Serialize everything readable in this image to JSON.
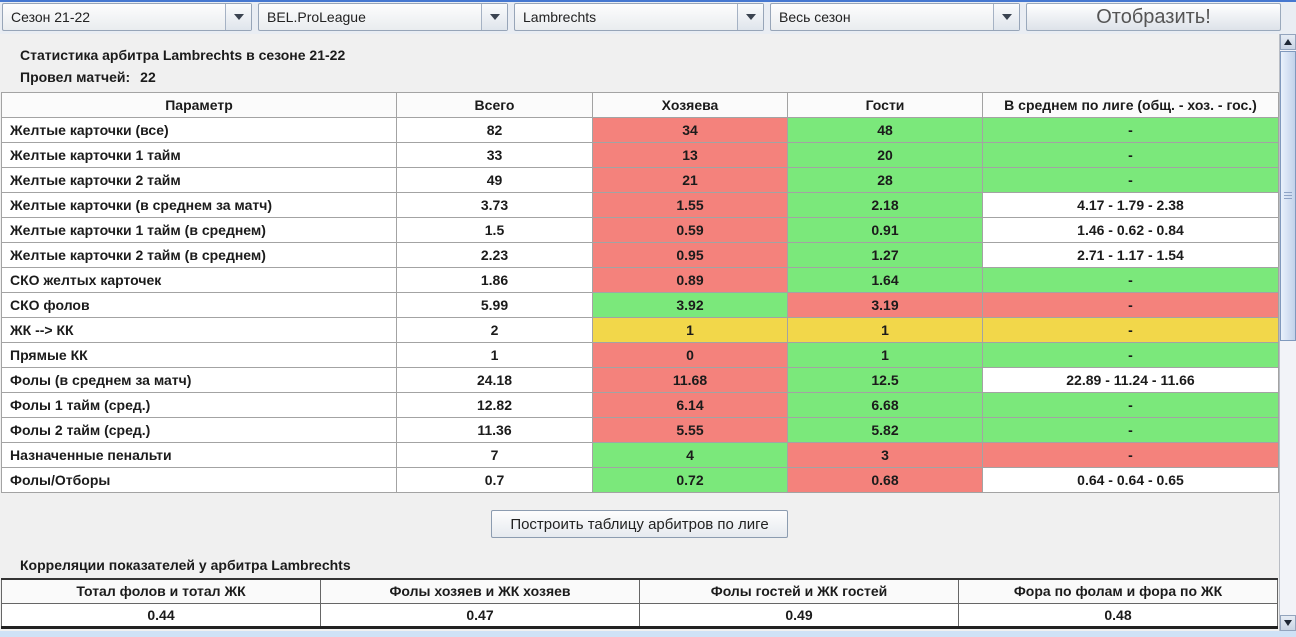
{
  "toolbar": {
    "season_select": "Сезон 21-22",
    "league_select": "BEL.ProLeague",
    "referee_select": "Lambrechts",
    "period_select": "Весь сезон",
    "show_button": "Отобразить!"
  },
  "header": {
    "title": "Статистика арбитра Lambrechts в сезоне 21-22",
    "matches_label": "Провел матчей:",
    "matches_value": "22"
  },
  "stats_table": {
    "columns": [
      "Параметр",
      "Всего",
      "Хозяева",
      "Гости",
      "В среднем по лиге (общ. - хоз. - гос.)"
    ],
    "rows": [
      {
        "param": "Желтые карточки (все)",
        "total": "82",
        "home": "34",
        "home_c": "red",
        "away": "48",
        "away_c": "green",
        "league": "-",
        "league_c": "green"
      },
      {
        "param": "Желтые карточки 1 тайм",
        "total": "33",
        "home": "13",
        "home_c": "red",
        "away": "20",
        "away_c": "green",
        "league": "-",
        "league_c": "green"
      },
      {
        "param": "Желтые карточки 2 тайм",
        "total": "49",
        "home": "21",
        "home_c": "red",
        "away": "28",
        "away_c": "green",
        "league": "-",
        "league_c": "green"
      },
      {
        "param": "Желтые карточки (в среднем за матч)",
        "total": "3.73",
        "home": "1.55",
        "home_c": "red",
        "away": "2.18",
        "away_c": "green",
        "league": "4.17   -   1.79   -   2.38",
        "league_c": "white"
      },
      {
        "param": "Желтые карточки 1 тайм (в среднем)",
        "total": "1.5",
        "home": "0.59",
        "home_c": "red",
        "away": "0.91",
        "away_c": "green",
        "league": "1.46   -   0.62   -   0.84",
        "league_c": "white"
      },
      {
        "param": "Желтые карточки 2 тайм (в среднем)",
        "total": "2.23",
        "home": "0.95",
        "home_c": "red",
        "away": "1.27",
        "away_c": "green",
        "league": "2.71   -   1.17   -   1.54",
        "league_c": "white"
      },
      {
        "param": "СКО желтых карточек",
        "total": "1.86",
        "home": "0.89",
        "home_c": "red",
        "away": "1.64",
        "away_c": "green",
        "league": "-",
        "league_c": "green"
      },
      {
        "param": "СКО фолов",
        "total": "5.99",
        "home": "3.92",
        "home_c": "green",
        "away": "3.19",
        "away_c": "red",
        "league": "-",
        "league_c": "red"
      },
      {
        "param": "ЖК --> КК",
        "total": "2",
        "home": "1",
        "home_c": "yellow",
        "away": "1",
        "away_c": "yellow",
        "league": "-",
        "league_c": "yellow"
      },
      {
        "param": "Прямые КК",
        "total": "1",
        "home": "0",
        "home_c": "red",
        "away": "1",
        "away_c": "green",
        "league": "-",
        "league_c": "green"
      },
      {
        "param": "Фолы (в среднем за матч)",
        "total": "24.18",
        "home": "11.68",
        "home_c": "red",
        "away": "12.5",
        "away_c": "green",
        "league": "22.89   -   11.24   -   11.66",
        "league_c": "white"
      },
      {
        "param": "Фолы 1 тайм (сред.)",
        "total": "12.82",
        "home": "6.14",
        "home_c": "red",
        "away": "6.68",
        "away_c": "green",
        "league": "-",
        "league_c": "green"
      },
      {
        "param": "Фолы 2 тайм (сред.)",
        "total": "11.36",
        "home": "5.55",
        "home_c": "red",
        "away": "5.82",
        "away_c": "green",
        "league": "-",
        "league_c": "green"
      },
      {
        "param": "Назначенные пенальти",
        "total": "7",
        "home": "4",
        "home_c": "green",
        "away": "3",
        "away_c": "red",
        "league": "-",
        "league_c": "red"
      },
      {
        "param": "Фолы/Отборы",
        "total": "0.7",
        "home": "0.72",
        "home_c": "green",
        "away": "0.68",
        "away_c": "red",
        "league": "0.64   -   0.64   -   0.65",
        "league_c": "white"
      }
    ]
  },
  "build_button_label": "Построить таблицу арбитров по лиге",
  "correlations": {
    "title": "Корреляции показателей у арбитра Lambrechts",
    "columns": [
      "Тотал фолов и тотал ЖК",
      "Фолы хозяев и ЖК хозяев",
      "Фолы гостей и ЖК гостей",
      "Фора по фолам и фора по ЖК"
    ],
    "values": [
      "0.44",
      "0.47",
      "0.49",
      "0.48"
    ]
  },
  "colors": {
    "red": "#F4827C",
    "green": "#7BE87B",
    "yellow": "#F2D74A",
    "accent_blue": "#4678D0"
  }
}
